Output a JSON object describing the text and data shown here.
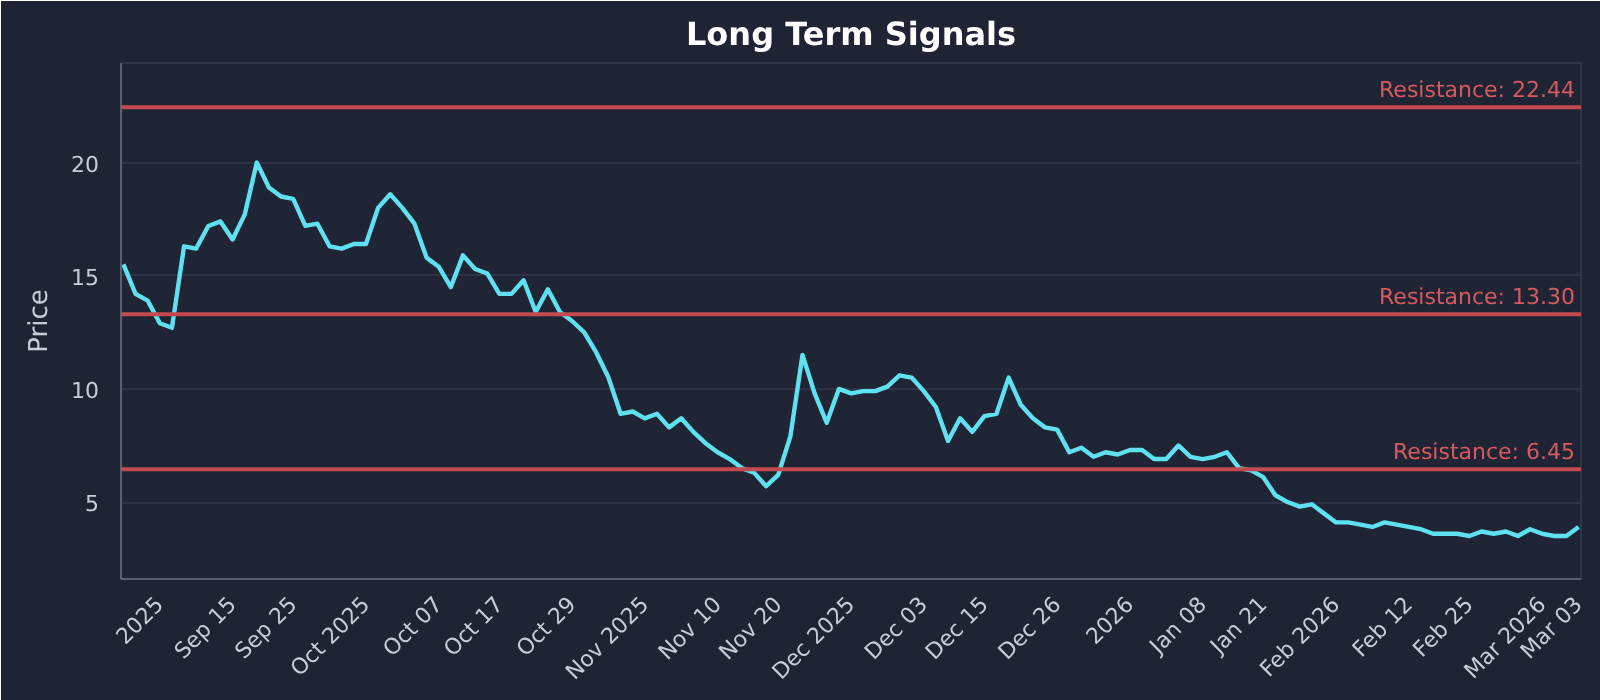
{
  "chart_data": {
    "type": "line",
    "title": "Long Term Signals",
    "ylabel": "Price",
    "categories": [
      null,
      null,
      null,
      "2025",
      null,
      null,
      null,
      null,
      null,
      "Sep 15",
      null,
      null,
      null,
      null,
      "Sep 25",
      null,
      null,
      null,
      null,
      null,
      "Oct 2025",
      null,
      null,
      null,
      null,
      null,
      "Oct 07",
      null,
      null,
      null,
      null,
      "Oct 17",
      null,
      null,
      null,
      null,
      null,
      "Oct 29",
      null,
      null,
      null,
      null,
      null,
      "Nov 2025",
      null,
      null,
      null,
      null,
      null,
      "Nov 10",
      null,
      null,
      null,
      null,
      "Nov 20",
      null,
      null,
      null,
      null,
      null,
      "Dec 2025",
      null,
      null,
      null,
      null,
      null,
      "Dec 03",
      null,
      null,
      null,
      null,
      "Dec 15",
      null,
      null,
      null,
      null,
      null,
      "Dec 26",
      null,
      null,
      null,
      null,
      null,
      "2026",
      null,
      null,
      null,
      null,
      null,
      "Jan 08",
      null,
      null,
      null,
      null,
      "Jan 21",
      null,
      null,
      null,
      null,
      null,
      "Feb 2026",
      null,
      null,
      null,
      null,
      null,
      "Feb 12",
      null,
      null,
      null,
      null,
      "Feb 25",
      null,
      null,
      null,
      null,
      null,
      "Mar 2026",
      null,
      null,
      "Mar 03"
    ],
    "series": [
      {
        "color": "#5fe1f2",
        "values": [
          15.5,
          14.2,
          13.9,
          12.9,
          12.7,
          16.3,
          16.2,
          17.2,
          17.4,
          16.6,
          17.7,
          20.0,
          18.9,
          18.5,
          18.4,
          17.2,
          17.3,
          16.3,
          16.2,
          16.4,
          16.4,
          18.0,
          18.6,
          18.0,
          17.3,
          15.8,
          15.4,
          14.5,
          15.9,
          15.3,
          15.1,
          14.2,
          14.2,
          14.8,
          13.4,
          14.4,
          13.4,
          13.0,
          12.5,
          11.6,
          10.5,
          8.9,
          9.0,
          8.7,
          8.9,
          8.3,
          8.7,
          8.1,
          7.6,
          7.2,
          6.9,
          6.5,
          6.3,
          5.7,
          6.2,
          7.9,
          11.5,
          9.8,
          8.5,
          10.0,
          9.8,
          9.9,
          9.9,
          10.1,
          10.6,
          10.5,
          9.9,
          9.2,
          7.7,
          8.7,
          8.1,
          8.8,
          8.9,
          10.5,
          9.3,
          8.7,
          8.3,
          8.2,
          7.2,
          7.4,
          7.0,
          7.2,
          7.1,
          7.3,
          7.3,
          6.9,
          6.9,
          7.5,
          7.0,
          6.9,
          7.0,
          7.2,
          6.5,
          6.4,
          6.1,
          5.3,
          5.0,
          4.8,
          4.9,
          4.5,
          4.1,
          4.1,
          4.0,
          3.9,
          4.1,
          4.0,
          3.9,
          3.8,
          3.6,
          3.6,
          3.6,
          3.5,
          3.7,
          3.6,
          3.7,
          3.5,
          3.8,
          3.6,
          3.5,
          3.5,
          3.9
        ]
      }
    ],
    "ylim": [
      1.6,
      24.4
    ],
    "yticks": [
      5,
      10,
      15,
      20
    ],
    "grid": "y",
    "ref_lines": [
      {
        "axis": "y",
        "value": 22.44,
        "label": "Resistance: 22.44",
        "color": "#c44a4f"
      },
      {
        "axis": "y",
        "value": 13.3,
        "label": "Resistance: 13.30",
        "color": "#c44a4f"
      },
      {
        "axis": "y",
        "value": 6.45,
        "label": "Resistance: 6.45",
        "color": "#c44a4f"
      }
    ]
  }
}
